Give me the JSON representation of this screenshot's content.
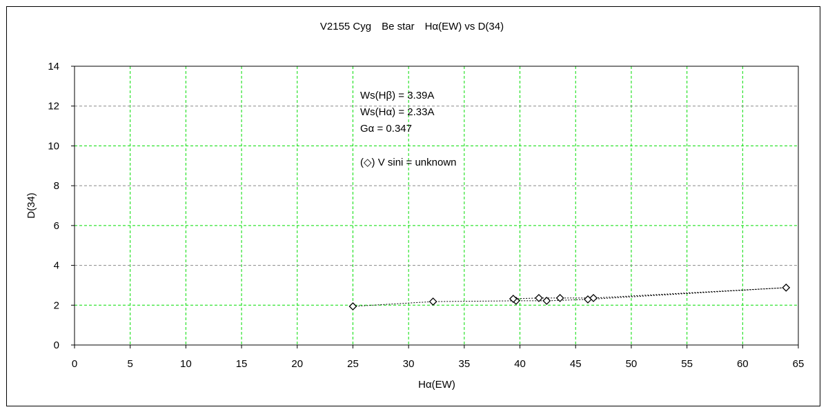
{
  "chart_data": {
    "type": "scatter",
    "title": "V2155 Cyg　Be star　Hα(EW) vs D(34)",
    "xlabel": "Hα(EW)",
    "ylabel": "D(34)",
    "xlim": [
      0,
      65
    ],
    "ylim": [
      0,
      14
    ],
    "xticks": [
      0,
      5,
      10,
      15,
      20,
      25,
      30,
      35,
      40,
      45,
      50,
      55,
      60,
      65
    ],
    "yticks": [
      0,
      2,
      4,
      6,
      8,
      10,
      12,
      14
    ],
    "grid": true,
    "grid_color": "#00dd00",
    "marker": "diamond",
    "line_style": "dotted",
    "points": [
      {
        "x": 25.0,
        "y": 1.94
      },
      {
        "x": 32.2,
        "y": 2.18
      },
      {
        "x": 39.65,
        "y": 2.22
      },
      {
        "x": 42.4,
        "y": 2.22
      },
      {
        "x": 46.1,
        "y": 2.29
      },
      {
        "x": 63.9,
        "y": 2.88
      },
      {
        "x": 46.6,
        "y": 2.36
      },
      {
        "x": 43.6,
        "y": 2.36
      },
      {
        "x": 41.7,
        "y": 2.36
      },
      {
        "x": 39.4,
        "y": 2.32
      }
    ],
    "annotations": [
      "Ws(Hβ) = 3.39A",
      "Ws(Hα) = 2.33A",
      "Gα = 0.347",
      "(◇) V sini = unknown"
    ]
  }
}
